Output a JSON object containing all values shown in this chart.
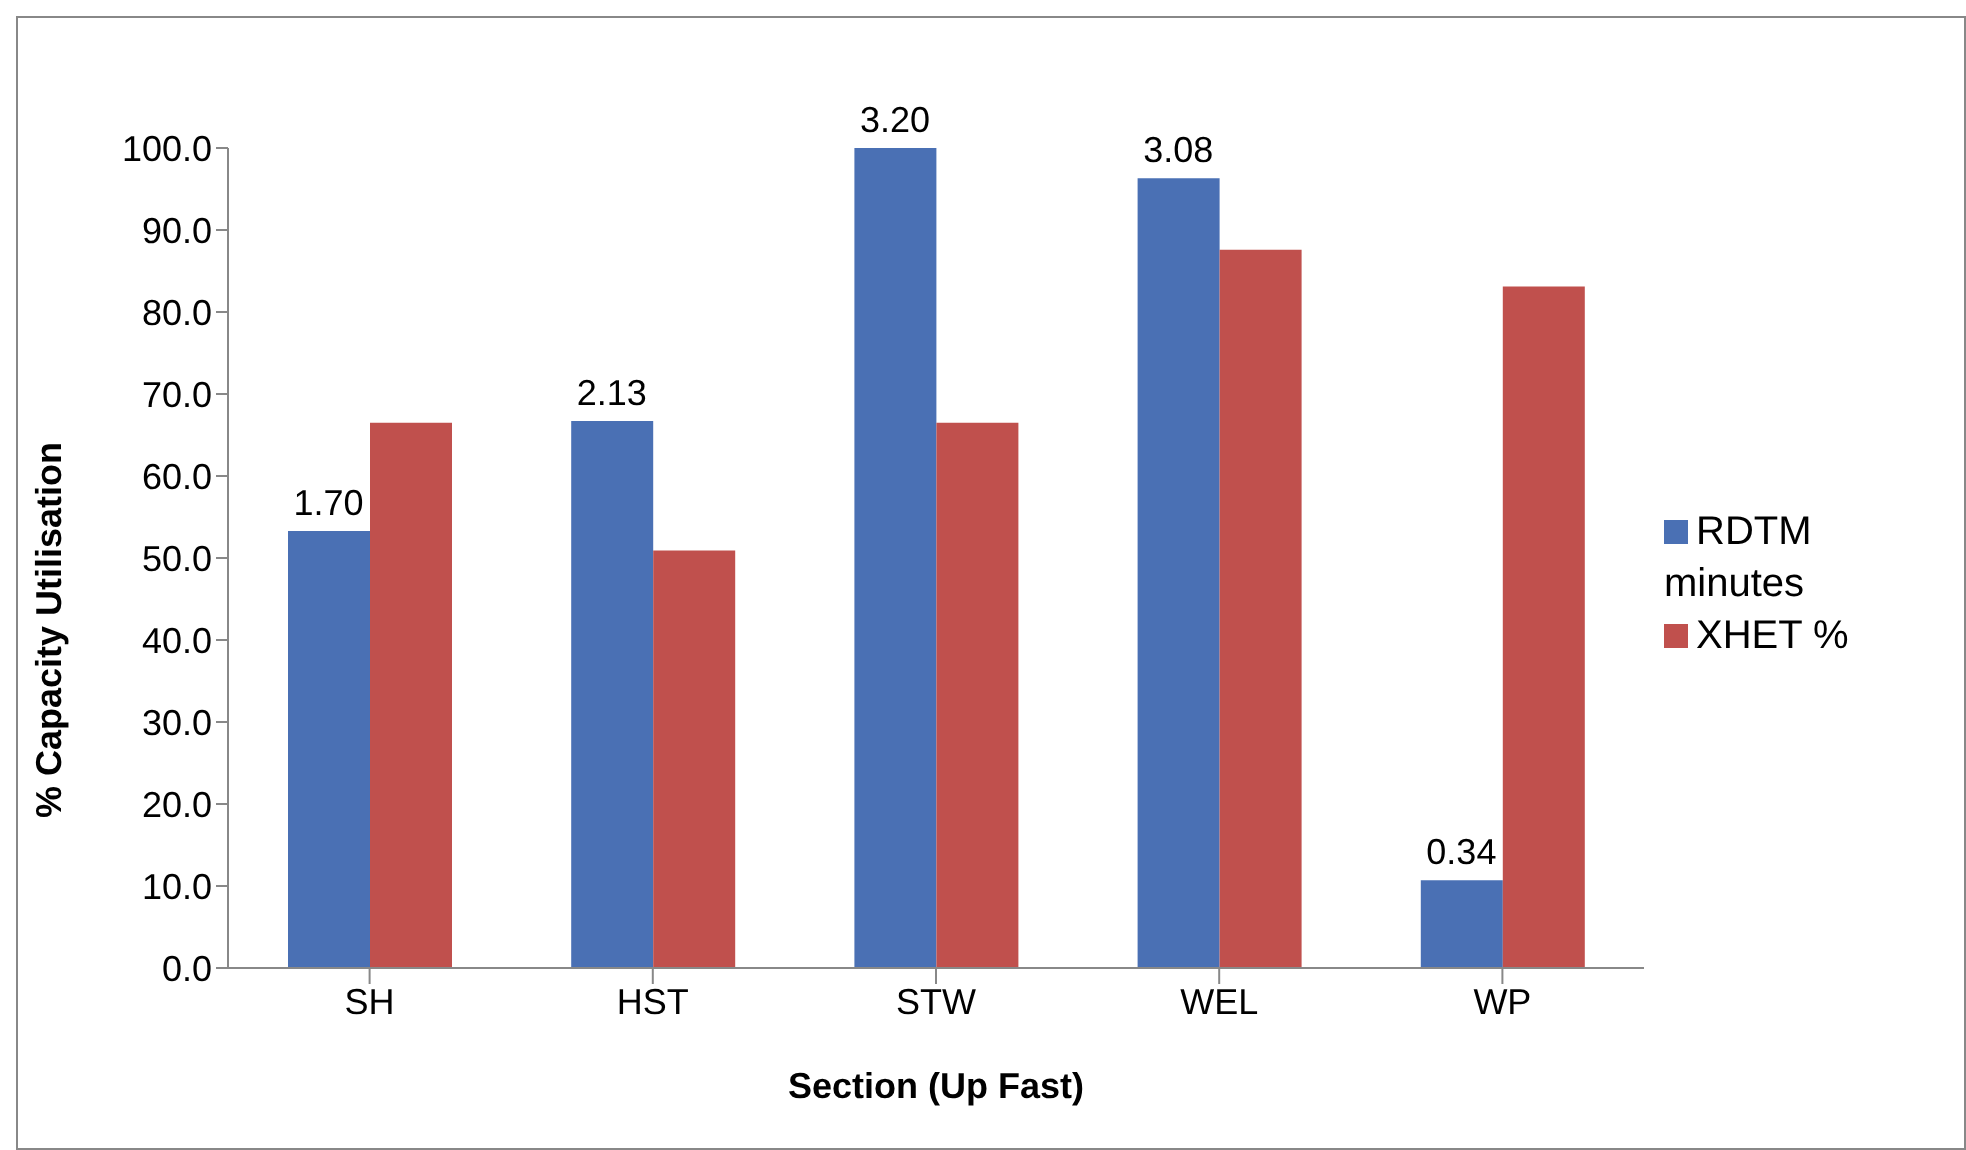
{
  "chart_data": {
    "type": "bar",
    "xlabel": "Section (Up Fast)",
    "ylabel": "% Capacity Utilisation",
    "categories": [
      "SH",
      "HST",
      "STW",
      "WEL",
      "WP"
    ],
    "series": [
      {
        "name": "RDTM minutes",
        "color": "#4a70b4",
        "values": [
          53.3,
          66.7,
          100,
          96.3,
          10.7
        ]
      },
      {
        "name": "XHET %",
        "color": "#c0504d",
        "values": [
          66.5,
          50.9,
          66.5,
          87.6,
          83.1
        ]
      }
    ],
    "ylim": [
      0,
      100
    ],
    "yticks": [
      {
        "value": 0,
        "label": "0.0"
      },
      {
        "value": 10,
        "label": "10.0"
      },
      {
        "value": 20,
        "label": "20.0"
      },
      {
        "value": 30,
        "label": "30.0"
      },
      {
        "value": 40,
        "label": "40.0"
      },
      {
        "value": 50,
        "label": "50.0"
      },
      {
        "value": 60,
        "label": "60.0"
      },
      {
        "value": 70,
        "label": "70.0"
      },
      {
        "value": 80,
        "label": "80.0"
      },
      {
        "value": 90,
        "label": "90.0"
      },
      {
        "value": 100,
        "label": "100.0"
      }
    ],
    "grid": false,
    "legend": "right",
    "annotations": [
      {
        "text": "1.70",
        "x": "SH",
        "y": 53.3
      },
      {
        "text": "2.13",
        "x": "HST",
        "y": 66.7
      },
      {
        "text": "3.20",
        "x": "STW",
        "y": 100
      },
      {
        "text": "3.08",
        "x": "WEL",
        "y": 96.3
      },
      {
        "text": "0.34",
        "x": "WP",
        "y": 10.7
      }
    ]
  }
}
